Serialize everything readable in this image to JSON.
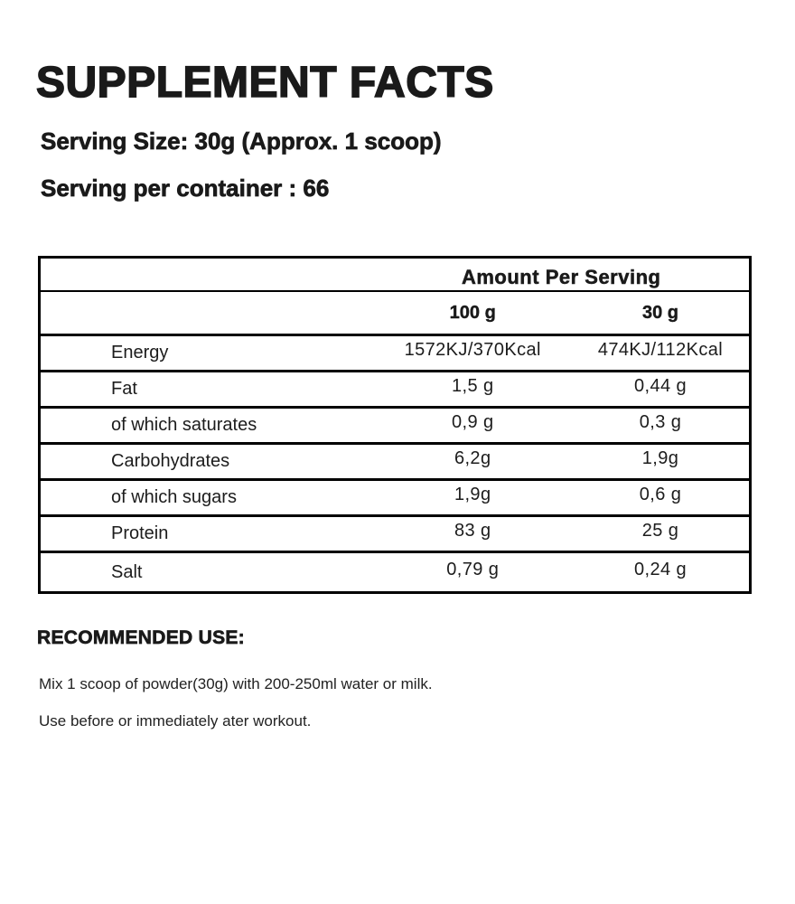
{
  "title": "SUPPLEMENT FACTS",
  "serving_size": "Serving Size: 30g (Approx. 1 scoop)",
  "servings_per_container": "Serving per container : 66",
  "table": {
    "header": "Amount Per Serving",
    "columns": [
      "100 g",
      "30 g"
    ],
    "rows": [
      {
        "label": "Energy",
        "per_100g": "1572KJ/370Kcal",
        "per_30g": "474KJ/112Kcal"
      },
      {
        "label": "Fat",
        "per_100g": "1,5 g",
        "per_30g": "0,44 g"
      },
      {
        "label": "of which saturates",
        "per_100g": "0,9 g",
        "per_30g": "0,3 g"
      },
      {
        "label": "Carbohydrates",
        "per_100g": "6,2g",
        "per_30g": "1,9g"
      },
      {
        "label": "of which sugars",
        "per_100g": "1,9g",
        "per_30g": "0,6 g"
      },
      {
        "label": "Protein",
        "per_100g": "83 g",
        "per_30g": "25 g"
      },
      {
        "label": "Salt",
        "per_100g": "0,79 g",
        "per_30g": "0,24 g"
      }
    ]
  },
  "recommended_use": {
    "heading": "RECOMMENDED USE:",
    "lines": [
      "Mix 1 scoop of powder(30g) with 200-250ml water or milk.",
      "Use before or immediately ater workout."
    ]
  },
  "colors": {
    "text": "#1a1a1a",
    "background": "#ffffff",
    "border": "#000000"
  }
}
